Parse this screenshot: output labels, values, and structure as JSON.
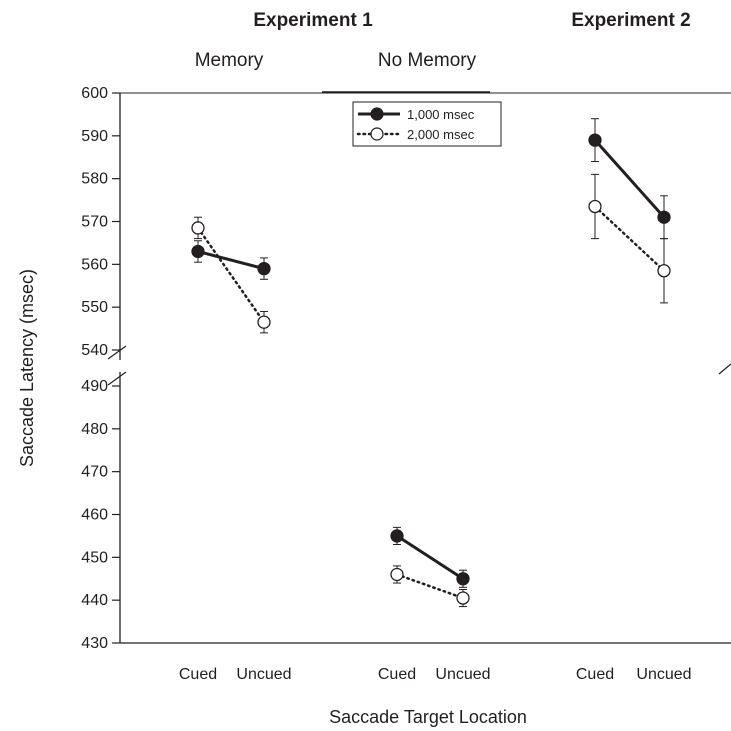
{
  "chart_data": {
    "type": "line",
    "ylabel": "Saccade Latency (msec)",
    "xlabel": "Saccade Target Location",
    "experiments": [
      "Experiment 1",
      "Experiment 2"
    ],
    "conditions": [
      "Memory",
      "No Memory"
    ],
    "categories": [
      "Cued",
      "Uncued",
      "Cued",
      "Uncued",
      "Cued",
      "Uncued"
    ],
    "y_ticks_upper": [
      540,
      550,
      560,
      570,
      580,
      590,
      600
    ],
    "y_ticks_lower": [
      430,
      440,
      450,
      460,
      470,
      480,
      490
    ],
    "ylim_upper": [
      540,
      600
    ],
    "ylim_lower": [
      430,
      490
    ],
    "axis_break": true,
    "legend": {
      "position": "top-center"
    },
    "series": [
      {
        "name": "1,000 msec",
        "marker": "filled-circle",
        "line": "solid",
        "groups": [
          {
            "points": [
              {
                "y": 563,
                "err": 2.5
              },
              {
                "y": 559,
                "err": 2.5
              }
            ]
          },
          {
            "points": [
              {
                "y": 455,
                "err": 2
              },
              {
                "y": 445,
                "err": 2
              }
            ]
          },
          {
            "points": [
              {
                "y": 589,
                "err": 5
              },
              {
                "y": 571,
                "err": 5
              }
            ]
          }
        ]
      },
      {
        "name": "2,000 msec",
        "marker": "open-circle",
        "line": "dotted",
        "groups": [
          {
            "points": [
              {
                "y": 568.5,
                "err": 2.5
              },
              {
                "y": 546.5,
                "err": 2.5
              }
            ]
          },
          {
            "points": [
              {
                "y": 446,
                "err": 2
              },
              {
                "y": 440.5,
                "err": 2
              }
            ]
          },
          {
            "points": [
              {
                "y": 573.5,
                "err": 7.5
              },
              {
                "y": 558.5,
                "err": 7.5
              }
            ]
          }
        ]
      }
    ]
  },
  "colors": {
    "ink": "#231f20",
    "marker_fill_open": "#ffffff"
  }
}
